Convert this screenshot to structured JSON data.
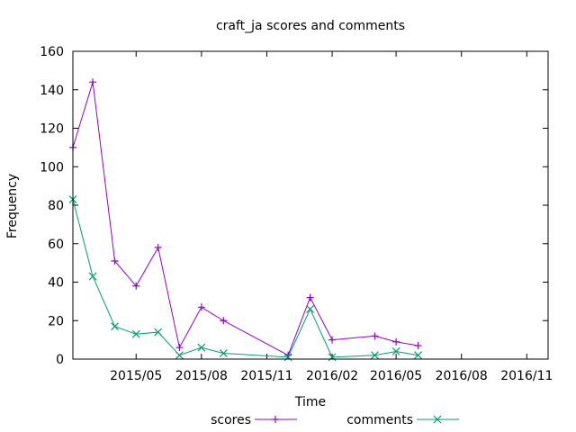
{
  "chart_data": {
    "type": "line",
    "title": "craft_ja scores and comments",
    "xlabel": "Time",
    "ylabel": "Frequency",
    "x_range": [
      "2015-02-01",
      "2016-12-01"
    ],
    "ylim": [
      0,
      160
    ],
    "y_ticks": [
      0,
      20,
      40,
      60,
      80,
      100,
      120,
      140,
      160
    ],
    "x_ticks": [
      {
        "date": "2015-05-01",
        "label": "2015/05"
      },
      {
        "date": "2015-08-01",
        "label": "2015/08"
      },
      {
        "date": "2015-11-01",
        "label": "2015/11"
      },
      {
        "date": "2016-02-01",
        "label": "2016/02"
      },
      {
        "date": "2016-05-01",
        "label": "2016/05"
      },
      {
        "date": "2016-08-01",
        "label": "2016/08"
      },
      {
        "date": "2016-11-01",
        "label": "2016/11"
      }
    ],
    "grid": false,
    "legend_position": "bottom-center",
    "series": [
      {
        "name": "scores",
        "color": "#9400d3",
        "marker": "plus",
        "points": [
          {
            "x": "2015-02-01",
            "y": 110
          },
          {
            "x": "2015-03-01",
            "y": 144
          },
          {
            "x": "2015-04-01",
            "y": 51
          },
          {
            "x": "2015-05-01",
            "y": 38
          },
          {
            "x": "2015-06-01",
            "y": 58
          },
          {
            "x": "2015-07-01",
            "y": 6
          },
          {
            "x": "2015-08-01",
            "y": 27
          },
          {
            "x": "2015-09-01",
            "y": 20
          },
          {
            "x": "2015-12-01",
            "y": 2
          },
          {
            "x": "2016-01-01",
            "y": 32
          },
          {
            "x": "2016-02-01",
            "y": 10
          },
          {
            "x": "2016-04-01",
            "y": 12
          },
          {
            "x": "2016-05-01",
            "y": 9
          },
          {
            "x": "2016-06-01",
            "y": 7
          }
        ]
      },
      {
        "name": "comments",
        "color": "#009e73",
        "marker": "cross",
        "points": [
          {
            "x": "2015-02-01",
            "y": 83
          },
          {
            "x": "2015-03-01",
            "y": 43
          },
          {
            "x": "2015-04-01",
            "y": 17
          },
          {
            "x": "2015-05-01",
            "y": 13
          },
          {
            "x": "2015-06-01",
            "y": 14
          },
          {
            "x": "2015-07-01",
            "y": 2
          },
          {
            "x": "2015-08-01",
            "y": 6
          },
          {
            "x": "2015-09-01",
            "y": 3
          },
          {
            "x": "2015-12-01",
            "y": 1
          },
          {
            "x": "2016-01-01",
            "y": 26
          },
          {
            "x": "2016-02-01",
            "y": 1
          },
          {
            "x": "2016-04-01",
            "y": 2
          },
          {
            "x": "2016-05-01",
            "y": 4
          },
          {
            "x": "2016-06-01",
            "y": 2
          }
        ]
      }
    ]
  }
}
